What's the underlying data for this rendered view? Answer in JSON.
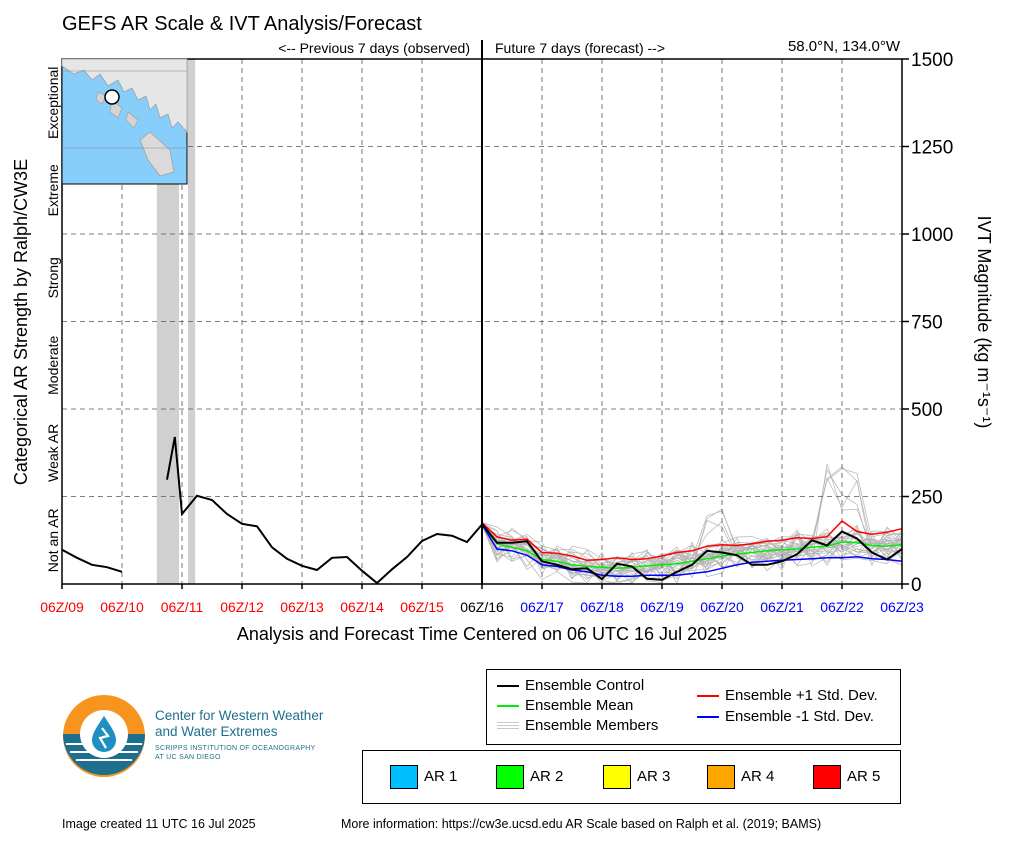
{
  "title": "GEFS AR Scale & IVT Analysis/Forecast",
  "location": "58.0°N, 134.0°W",
  "previous_label": "<-- Previous 7 days (observed)",
  "future_label": "Future 7 days (forecast) -->",
  "left_axis_label": "Categorical AR Strength by Ralph/CW3E",
  "right_axis_label": "IVT Magnitude (kg m⁻¹s⁻¹)",
  "x_axis_label": "Analysis and Forecast Time Centered on 06 UTC 16 Jul 2025",
  "colors": {
    "observed": "#ff0000",
    "forecast": "#0000ff",
    "center": "#000000",
    "control": "#000000",
    "mean": "#00ee00",
    "plus_std": "#ff0000",
    "minus_std": "#0000ff",
    "members": "#b4b4b4",
    "ar_shading": "#d0d0d0"
  },
  "chart_data": {
    "type": "line",
    "ylim": [
      0,
      1500
    ],
    "y_ticks": [
      0,
      250,
      500,
      750,
      1000,
      1250,
      1500
    ],
    "xlim_days": [
      9,
      23
    ],
    "x_tick_labels": [
      {
        "label": "06Z/09",
        "day": 9,
        "period": "observed"
      },
      {
        "label": "06Z/10",
        "day": 10,
        "period": "observed"
      },
      {
        "label": "06Z/11",
        "day": 11,
        "period": "observed"
      },
      {
        "label": "06Z/12",
        "day": 12,
        "period": "observed"
      },
      {
        "label": "06Z/13",
        "day": 13,
        "period": "observed"
      },
      {
        "label": "06Z/14",
        "day": 14,
        "period": "observed"
      },
      {
        "label": "06Z/15",
        "day": 15,
        "period": "observed"
      },
      {
        "label": "06Z/16",
        "day": 16,
        "period": "center"
      },
      {
        "label": "06Z/17",
        "day": 17,
        "period": "forecast"
      },
      {
        "label": "06Z/18",
        "day": 18,
        "period": "forecast"
      },
      {
        "label": "06Z/19",
        "day": 19,
        "period": "forecast"
      },
      {
        "label": "06Z/20",
        "day": 20,
        "period": "forecast"
      },
      {
        "label": "06Z/21",
        "day": 21,
        "period": "forecast"
      },
      {
        "label": "06Z/22",
        "day": 22,
        "period": "forecast"
      },
      {
        "label": "06Z/23",
        "day": 23,
        "period": "forecast"
      }
    ],
    "categories": [
      {
        "label": "Not an AR",
        "from": 0,
        "to": 250
      },
      {
        "label": "Weak AR",
        "from": 250,
        "to": 500
      },
      {
        "label": "Moderate",
        "from": 500,
        "to": 750
      },
      {
        "label": "Strong",
        "from": 750,
        "to": 1000
      },
      {
        "label": "Extreme",
        "from": 1000,
        "to": 1250
      },
      {
        "label": "Exceptional",
        "from": 1250,
        "to": 1500
      }
    ],
    "ar_periods_days": [
      [
        10.58,
        10.95
      ],
      [
        11.1,
        11.22
      ]
    ],
    "observed": [
      {
        "x": [
          9,
          9.25,
          9.5,
          9.75,
          10
        ],
        "y": [
          98,
          75,
          55,
          48,
          35
        ]
      },
      {
        "x": [
          10.75,
          10.88,
          11,
          11.25,
          11.5,
          11.75,
          12,
          12.25,
          12.5,
          12.75,
          13,
          13.25,
          13.5,
          13.75,
          14,
          14.25,
          14.5,
          14.75,
          15,
          15.25,
          15.5,
          15.75,
          16
        ],
        "y": [
          298,
          420,
          200,
          252,
          240,
          200,
          172,
          165,
          105,
          72,
          52,
          40,
          75,
          77,
          38,
          3,
          42,
          77,
          123,
          143,
          138,
          120,
          170
        ]
      }
    ],
    "series": [
      {
        "name": "Ensemble Control",
        "x": [
          16,
          16.25,
          16.5,
          16.75,
          17,
          17.25,
          17.5,
          17.75,
          18,
          18.25,
          18.5,
          18.75,
          19,
          19.25,
          19.5,
          19.75,
          20,
          20.25,
          20.5,
          20.75,
          21,
          21.25,
          21.5,
          21.75,
          22,
          22.25,
          22.5,
          22.75,
          23
        ],
        "y": [
          172,
          118,
          118,
          122,
          65,
          55,
          42,
          45,
          14,
          58,
          50,
          15,
          12,
          35,
          55,
          95,
          90,
          82,
          55,
          55,
          65,
          85,
          125,
          110,
          150,
          130,
          90,
          70,
          100
        ]
      },
      {
        "name": "Ensemble Mean",
        "x": [
          16,
          16.25,
          16.5,
          16.75,
          17,
          17.25,
          17.5,
          17.75,
          18,
          18.25,
          18.5,
          18.75,
          19,
          19.25,
          19.5,
          19.75,
          20,
          20.25,
          20.5,
          20.75,
          21,
          21.25,
          21.5,
          21.75,
          22,
          22.25,
          22.5,
          22.75,
          23
        ],
        "y": [
          172,
          115,
          105,
          95,
          70,
          65,
          55,
          50,
          48,
          45,
          48,
          52,
          55,
          58,
          65,
          72,
          80,
          85,
          90,
          95,
          98,
          100,
          105,
          108,
          120,
          118,
          110,
          108,
          112
        ]
      },
      {
        "name": "Ensemble +1 Std. Dev.",
        "x": [
          16,
          16.25,
          16.5,
          16.75,
          17,
          17.25,
          17.5,
          17.75,
          18,
          18.25,
          18.5,
          18.75,
          19,
          19.25,
          19.5,
          19.75,
          20,
          20.25,
          20.5,
          20.75,
          21,
          21.25,
          21.5,
          21.75,
          22,
          22.25,
          22.5,
          22.75,
          23
        ],
        "y": [
          175,
          135,
          125,
          128,
          90,
          88,
          80,
          68,
          70,
          75,
          70,
          72,
          80,
          90,
          95,
          108,
          112,
          110,
          115,
          122,
          125,
          132,
          130,
          135,
          180,
          150,
          142,
          148,
          158
        ]
      },
      {
        "name": "Ensemble -1 Std. Dev.",
        "x": [
          16,
          16.25,
          16.5,
          16.75,
          17,
          17.25,
          17.5,
          17.75,
          18,
          18.25,
          18.5,
          18.75,
          19,
          19.25,
          19.5,
          19.75,
          20,
          20.25,
          20.5,
          20.75,
          21,
          21.25,
          21.5,
          21.75,
          22,
          22.25,
          22.5,
          22.75,
          23
        ],
        "y": [
          170,
          100,
          95,
          82,
          55,
          50,
          40,
          35,
          25,
          22,
          22,
          25,
          25,
          25,
          30,
          35,
          45,
          55,
          62,
          65,
          68,
          70,
          72,
          75,
          75,
          78,
          72,
          70,
          65
        ]
      }
    ],
    "members_summary": "30 grey ensemble member traces spread around the ensemble mean, mostly 0-250, with peaks near 360 around 06Z/22"
  },
  "legend": {
    "items": [
      {
        "label": "Ensemble Control",
        "style": "line",
        "color": "#000000"
      },
      {
        "label": "Ensemble Mean",
        "style": "line",
        "color": "#00ee00"
      },
      {
        "label": "Ensemble Members",
        "style": "members",
        "color": "#b4b4b4"
      },
      {
        "label": "Ensemble +1 Std. Dev.",
        "style": "line",
        "color": "#ff0000"
      },
      {
        "label": "Ensemble -1 Std. Dev.",
        "style": "line",
        "color": "#0000ff"
      }
    ]
  },
  "ar_scale": [
    {
      "label": "AR 1",
      "color": "#00bfff"
    },
    {
      "label": "AR 2",
      "color": "#00ff00"
    },
    {
      "label": "AR 3",
      "color": "#ffff00"
    },
    {
      "label": "AR 4",
      "color": "#ffa500"
    },
    {
      "label": "AR 5",
      "color": "#ff0000"
    }
  ],
  "logo": {
    "line1": "Center for Western Weather",
    "line2": "and Water Extremes",
    "line3": "SCRIPPS INSTITUTION OF OCEANOGRAPHY",
    "line4": "AT UC SAN DIEGO"
  },
  "footer": {
    "created": "Image created 11 UTC 16 Jul 2025",
    "more_info": "More information: https://cw3e.ucsd.edu AR Scale based on Ralph et al. (2019; BAMS)"
  }
}
